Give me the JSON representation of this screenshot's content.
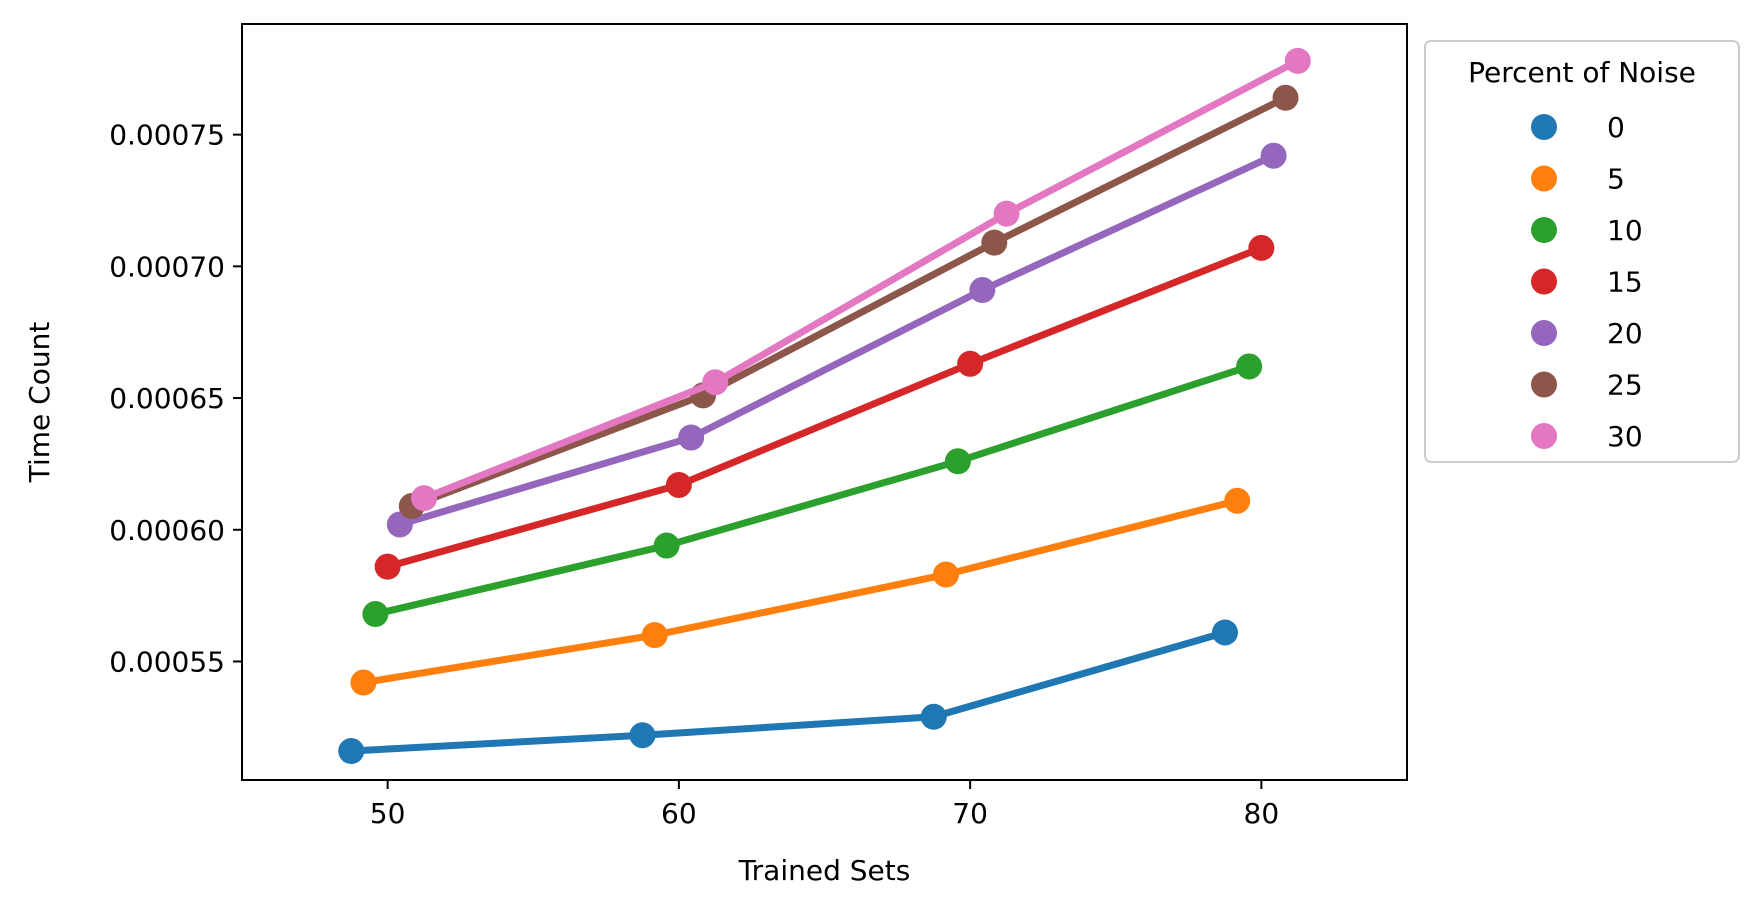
{
  "chart_data": {
    "type": "line",
    "title": "",
    "xlabel": "Trained Sets",
    "ylabel": "Time Count",
    "xlim": [
      45,
      85
    ],
    "ylim": [
      0.000505,
      0.000792
    ],
    "xticks": [
      50,
      60,
      70,
      80
    ],
    "xtick_labels": [
      "50",
      "60",
      "70",
      "80"
    ],
    "yticks": [
      0.00055,
      0.0006,
      0.00065,
      0.0007,
      0.00075
    ],
    "ytick_labels": [
      "0.00055",
      "0.00060",
      "0.00065",
      "0.00070",
      "0.00075"
    ],
    "grid": false,
    "legend": {
      "title": "Percent of Noise",
      "placement": "outside-right-top"
    },
    "series": [
      {
        "name": "0",
        "color": "#1f77b4",
        "x": [
          48.75,
          58.75,
          68.75,
          78.75
        ],
        "y": [
          0.000516,
          0.000522,
          0.000529,
          0.000561
        ]
      },
      {
        "name": "5",
        "color": "#ff7f0e",
        "x": [
          49.17,
          59.17,
          69.17,
          79.17
        ],
        "y": [
          0.000542,
          0.00056,
          0.000583,
          0.000611
        ]
      },
      {
        "name": "10",
        "color": "#2ca02c",
        "x": [
          49.58,
          59.58,
          69.58,
          79.58
        ],
        "y": [
          0.000568,
          0.000594,
          0.000626,
          0.000662
        ]
      },
      {
        "name": "15",
        "color": "#d62728",
        "x": [
          50.0,
          60.0,
          70.0,
          80.0
        ],
        "y": [
          0.000586,
          0.000617,
          0.000663,
          0.000707
        ]
      },
      {
        "name": "20",
        "color": "#9467bd",
        "x": [
          50.42,
          60.42,
          70.42,
          80.42
        ],
        "y": [
          0.000602,
          0.000635,
          0.000691,
          0.000742
        ]
      },
      {
        "name": "25",
        "color": "#8c564b",
        "x": [
          50.83,
          60.83,
          70.83,
          80.83
        ],
        "y": [
          0.000609,
          0.000651,
          0.000709,
          0.000764
        ]
      },
      {
        "name": "30",
        "color": "#e377c2",
        "x": [
          51.25,
          61.25,
          71.25,
          81.25
        ],
        "y": [
          0.000612,
          0.000656,
          0.00072,
          0.000778
        ]
      }
    ]
  }
}
